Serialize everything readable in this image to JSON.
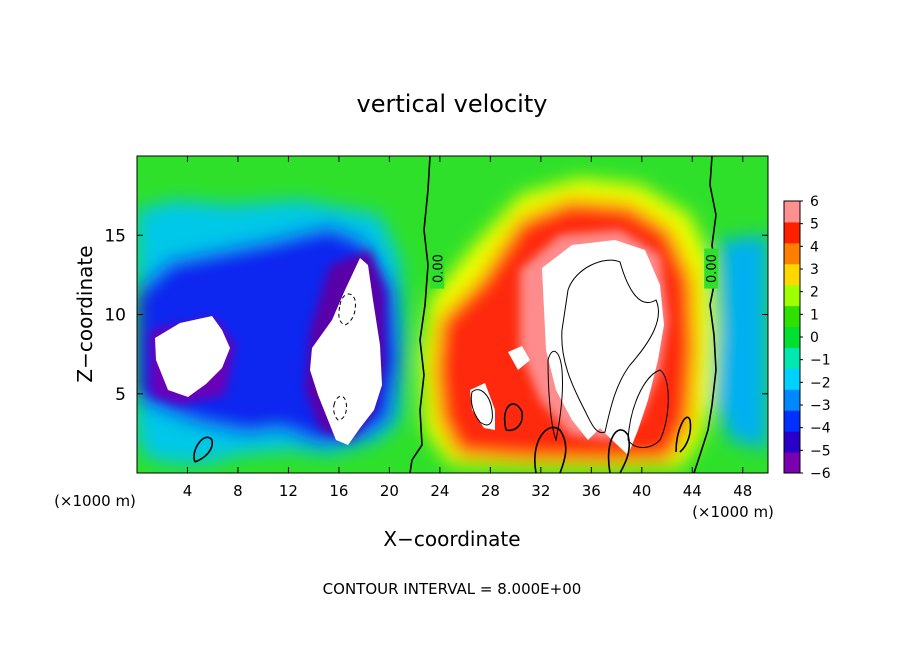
{
  "chart_data": {
    "type": "heatmap",
    "title": "vertical velocity",
    "xlabel": "X−coordinate",
    "ylabel": "Z−coordinate",
    "x_unit_left": "(×1000 m)",
    "x_unit_right": "(×1000 m)",
    "footer": "CONTOUR INTERVAL = 8.000E+00",
    "xlim": [
      0,
      50
    ],
    "ylim": [
      0,
      20
    ],
    "x_ticks": [
      4,
      8,
      12,
      16,
      20,
      24,
      28,
      32,
      36,
      40,
      44,
      48
    ],
    "x_tick_labels": [
      "4",
      "8",
      "12",
      "16",
      "20",
      "24",
      "28",
      "32",
      "36",
      "40",
      "44",
      "48"
    ],
    "y_ticks": [
      5,
      10,
      15
    ],
    "y_tick_labels": [
      "5",
      "10",
      "15"
    ],
    "colorbar": {
      "min": -6,
      "max": 6,
      "tick_labels": [
        "6",
        "5",
        "4",
        "3",
        "2",
        "1",
        "0",
        "−1",
        "−2",
        "−3",
        "−4",
        "−5",
        "−6"
      ],
      "colors": [
        "#7a00b0",
        "#2a00c8",
        "#0030ff",
        "#0088ff",
        "#00d2ff",
        "#00e8b0",
        "#00e030",
        "#30e000",
        "#a0ff00",
        "#ffd800",
        "#ff8000",
        "#ff2000",
        "#ff9090"
      ]
    },
    "contour_labels": [
      {
        "text": "0.00",
        "x": 23.8,
        "z": 12.9
      },
      {
        "text": "0.00",
        "x": 45.5,
        "z": 12.9
      }
    ],
    "grid": false
  }
}
